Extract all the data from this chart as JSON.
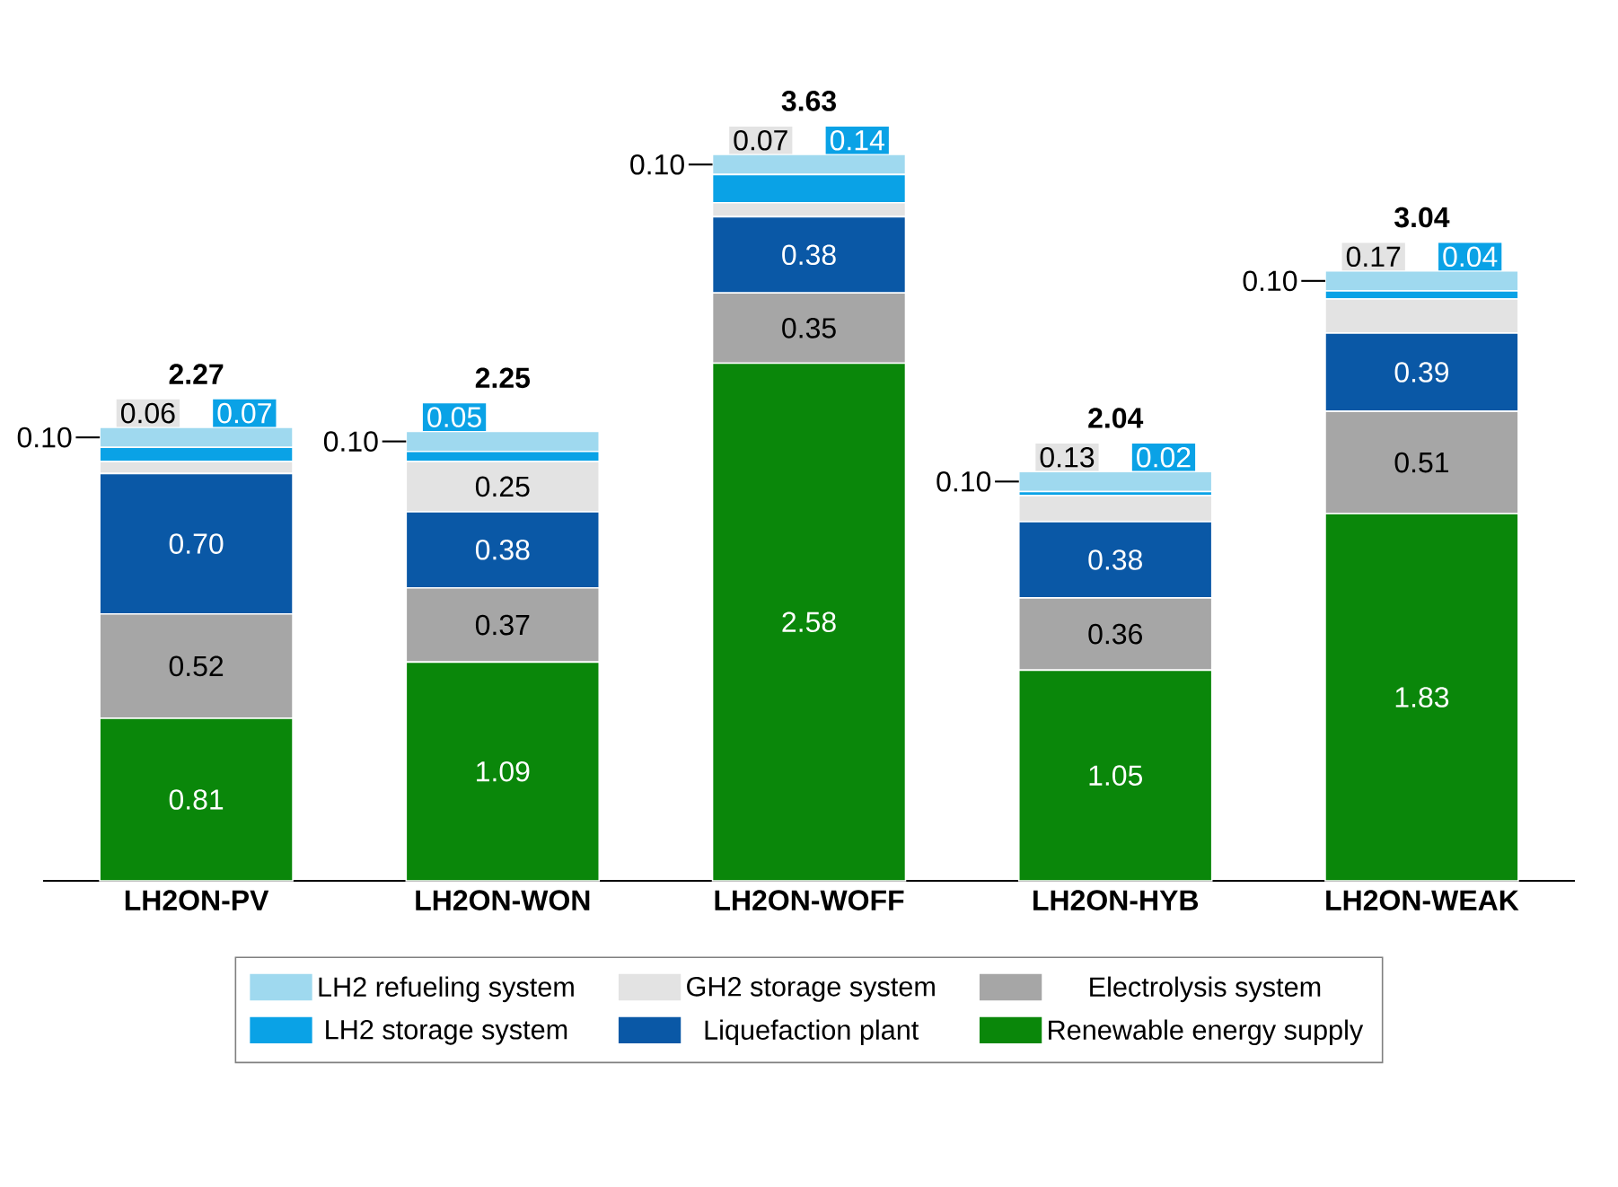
{
  "chart_data": {
    "type": "bar",
    "stacked": true,
    "legend": "bottom",
    "categories": [
      "LH2ON-PV",
      "LH2ON-WON",
      "LH2ON-WOFF",
      "LH2ON-HYB",
      "LH2ON-WEAK"
    ],
    "series": [
      {
        "name": "Renewable energy supply",
        "color": "#0a870a",
        "values": [
          0.81,
          1.09,
          2.58,
          1.05,
          1.83
        ],
        "value_labels": [
          "0.81",
          "1.09",
          "2.58",
          "1.05",
          "1.83"
        ]
      },
      {
        "name": "Electrolysis system",
        "color": "#a6a6a6",
        "values": [
          0.52,
          0.37,
          0.35,
          0.36,
          0.51
        ],
        "value_labels": [
          "0.52",
          "0.37",
          "0.35",
          "0.36",
          "0.51"
        ]
      },
      {
        "name": "Liquefaction plant",
        "color": "#0a58a6",
        "values": [
          0.7,
          0.38,
          0.38,
          0.38,
          0.39
        ],
        "value_labels": [
          "0.70",
          "0.38",
          "0.38",
          "0.38",
          "0.39"
        ]
      },
      {
        "name": "GH2 storage system",
        "color": "#e3e3e3",
        "values": [
          0.06,
          0.25,
          0.07,
          0.13,
          0.17
        ],
        "value_labels": [
          "0.06",
          "0.25",
          "0.07",
          "0.13",
          "0.17"
        ]
      },
      {
        "name": "LH2 storage system",
        "color": "#0aa2e6",
        "values": [
          0.07,
          0.05,
          0.14,
          0.02,
          0.04
        ],
        "value_labels": [
          "0.07",
          "0.05",
          "0.14",
          "0.02",
          "0.04"
        ]
      },
      {
        "name": "LH2 refueling system",
        "color": "#9fd9ef",
        "values": [
          0.1,
          0.1,
          0.1,
          0.1,
          0.1
        ],
        "value_labels": [
          "0.10",
          "0.10",
          "0.10",
          "0.10",
          "0.10"
        ]
      }
    ],
    "totals": [
      "2.27",
      "2.25",
      "3.63",
      "2.04",
      "3.04"
    ]
  }
}
